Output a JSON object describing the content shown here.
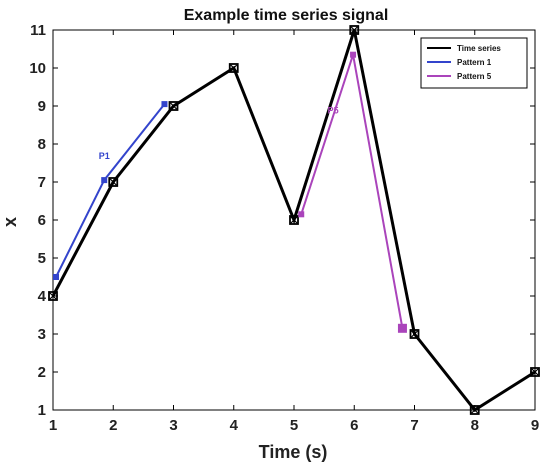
{
  "chart_data": {
    "type": "line",
    "title": "Example time series signal",
    "xlabel": "Time (s)",
    "ylabel": "x",
    "xlim": [
      1,
      9
    ],
    "ylim": [
      1,
      11
    ],
    "xticks": [
      1,
      2,
      3,
      4,
      5,
      6,
      7,
      8,
      9
    ],
    "yticks": [
      1,
      2,
      3,
      4,
      5,
      6,
      7,
      8,
      9,
      10,
      11
    ],
    "grid": false,
    "legend_position": "top-right",
    "series": [
      {
        "name": "Time series",
        "color": "#000000",
        "x": [
          1,
          2,
          3,
          4,
          5,
          6,
          7,
          8,
          9
        ],
        "y": [
          4,
          7,
          9,
          10,
          6,
          11,
          3,
          1,
          2
        ]
      },
      {
        "name": "Pattern 1",
        "color": "#3344cc",
        "x": [
          1.05,
          1.85,
          2.85
        ],
        "y": [
          4.5,
          7.05,
          9.05
        ]
      },
      {
        "name": "Pattern 5",
        "color": "#aa44bb",
        "x": [
          5.12,
          5.98,
          6.8
        ],
        "y": [
          6.15,
          10.35,
          3.15
        ]
      }
    ],
    "annotations": [
      {
        "text": "P1",
        "x": 1.85,
        "y": 7.6,
        "color": "#3344cc"
      },
      {
        "text": "P5",
        "x": 5.65,
        "y": 8.8,
        "color": "#aa44bb"
      }
    ]
  }
}
